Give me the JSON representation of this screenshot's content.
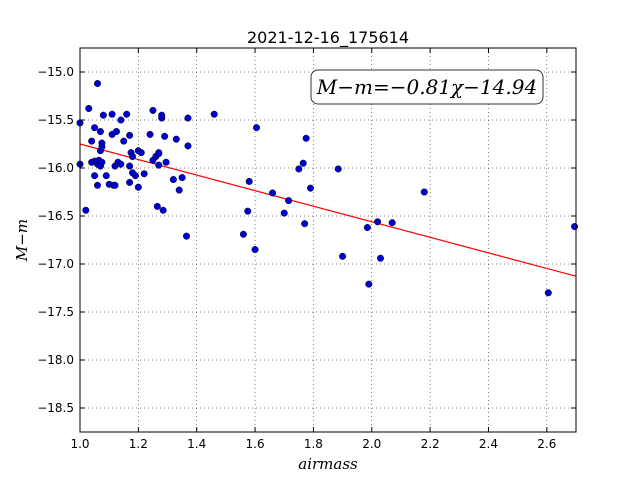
{
  "chart_data": {
    "type": "scatter",
    "title": "2021-12-16_175614",
    "xlabel": "airmass",
    "ylabel": "M−m",
    "xlim": [
      1.0,
      2.7
    ],
    "ylim": [
      -18.75,
      -14.75
    ],
    "y_inverted": true,
    "grid": true,
    "xticks": [
      1.0,
      1.2,
      1.4,
      1.6,
      1.8,
      2.0,
      2.2,
      2.4,
      2.6
    ],
    "xtick_labels": [
      "1.0",
      "1.2",
      "1.4",
      "1.6",
      "1.8",
      "2.0",
      "2.2",
      "2.4",
      "2.6"
    ],
    "yticks": [
      -15.0,
      -15.5,
      -16.0,
      -16.5,
      -17.0,
      -17.5,
      -18.0,
      -18.5
    ],
    "ytick_labels": [
      "−15.0",
      "−15.5",
      "−16.0",
      "−16.5",
      "−17.0",
      "−17.5",
      "−18.0",
      "−18.5"
    ],
    "annotation": "M−m=−0.81χ−14.94",
    "fit": {
      "slope": -0.81,
      "intercept": -14.94,
      "x_range": [
        1.0,
        2.7
      ],
      "color": "#ff0000"
    },
    "point_color": "#0000cc",
    "points": [
      [
        1.0,
        -15.53
      ],
      [
        1.0,
        -15.96
      ],
      [
        1.02,
        -16.44
      ],
      [
        1.03,
        -15.38
      ],
      [
        1.04,
        -15.72
      ],
      [
        1.04,
        -15.94
      ],
      [
        1.05,
        -16.08
      ],
      [
        1.05,
        -15.93
      ],
      [
        1.05,
        -15.58
      ],
      [
        1.055,
        -15.93
      ],
      [
        1.06,
        -15.12
      ],
      [
        1.06,
        -16.18
      ],
      [
        1.06,
        -15.96
      ],
      [
        1.065,
        -15.92
      ],
      [
        1.07,
        -15.98
      ],
      [
        1.07,
        -15.82
      ],
      [
        1.07,
        -15.62
      ],
      [
        1.075,
        -15.74
      ],
      [
        1.075,
        -15.94
      ],
      [
        1.075,
        -15.78
      ],
      [
        1.08,
        -15.45
      ],
      [
        1.09,
        -16.08
      ],
      [
        1.1,
        -16.17
      ],
      [
        1.11,
        -15.44
      ],
      [
        1.11,
        -15.65
      ],
      [
        1.115,
        -16.18
      ],
      [
        1.12,
        -15.98
      ],
      [
        1.12,
        -16.18
      ],
      [
        1.125,
        -15.62
      ],
      [
        1.13,
        -15.94
      ],
      [
        1.14,
        -15.96
      ],
      [
        1.14,
        -15.5
      ],
      [
        1.15,
        -15.72
      ],
      [
        1.16,
        -15.44
      ],
      [
        1.17,
        -15.66
      ],
      [
        1.17,
        -15.98
      ],
      [
        1.17,
        -16.15
      ],
      [
        1.175,
        -15.84
      ],
      [
        1.18,
        -15.88
      ],
      [
        1.18,
        -16.05
      ],
      [
        1.19,
        -16.08
      ],
      [
        1.2,
        -16.2
      ],
      [
        1.2,
        -15.82
      ],
      [
        1.21,
        -15.84
      ],
      [
        1.22,
        -16.06
      ],
      [
        1.24,
        -15.65
      ],
      [
        1.25,
        -15.4
      ],
      [
        1.25,
        -15.92
      ],
      [
        1.26,
        -15.88
      ],
      [
        1.265,
        -16.4
      ],
      [
        1.27,
        -15.85
      ],
      [
        1.27,
        -15.97
      ],
      [
        1.27,
        -15.84
      ],
      [
        1.28,
        -15.48
      ],
      [
        1.28,
        -15.45
      ],
      [
        1.285,
        -16.44
      ],
      [
        1.29,
        -15.67
      ],
      [
        1.295,
        -15.94
      ],
      [
        1.32,
        -16.12
      ],
      [
        1.33,
        -15.7
      ],
      [
        1.34,
        -16.23
      ],
      [
        1.35,
        -16.1
      ],
      [
        1.365,
        -16.71
      ],
      [
        1.37,
        -15.48
      ],
      [
        1.37,
        -15.77
      ],
      [
        1.46,
        -15.44
      ],
      [
        1.56,
        -16.69
      ],
      [
        1.575,
        -16.45
      ],
      [
        1.58,
        -16.14
      ],
      [
        1.6,
        -16.85
      ],
      [
        1.605,
        -15.58
      ],
      [
        1.66,
        -16.26
      ],
      [
        1.7,
        -16.47
      ],
      [
        1.715,
        -16.34
      ],
      [
        1.75,
        -16.01
      ],
      [
        1.765,
        -15.95
      ],
      [
        1.77,
        -16.58
      ],
      [
        1.775,
        -15.69
      ],
      [
        1.79,
        -16.21
      ],
      [
        1.885,
        -16.01
      ],
      [
        1.9,
        -16.92
      ],
      [
        1.985,
        -16.62
      ],
      [
        1.99,
        -17.21
      ],
      [
        2.02,
        -16.56
      ],
      [
        2.03,
        -16.94
      ],
      [
        2.07,
        -16.57
      ],
      [
        2.18,
        -16.25
      ],
      [
        2.605,
        -17.3
      ],
      [
        2.695,
        -16.61
      ]
    ]
  }
}
